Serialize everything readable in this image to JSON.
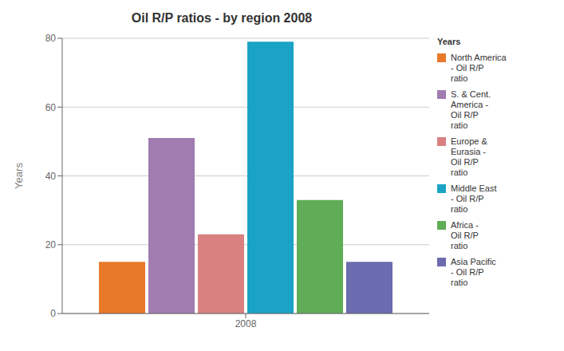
{
  "chart_data": {
    "type": "bar",
    "title": "Oil R/P ratios - by region 2008",
    "ylabel": "Years",
    "categories": [
      "2008"
    ],
    "series": [
      {
        "name": "North America\n- Oil R/P\nratio",
        "color": "#E8782A",
        "values": [
          15
        ]
      },
      {
        "name": "S. & Cent.\nAmerica -\nOil R/P\nratio",
        "color": "#A07CB0",
        "values": [
          51
        ]
      },
      {
        "name": "Europe &\nEurasia -\nOil R/P\nratio",
        "color": "#D98080",
        "values": [
          23
        ]
      },
      {
        "name": "Middle East\n- Oil R/P\nratio",
        "color": "#1BA3C6",
        "values": [
          79
        ]
      },
      {
        "name": "Africa -\nOil R/P\nratio",
        "color": "#5FAD56",
        "values": [
          33
        ]
      },
      {
        "name": "Asia Pacific\n- Oil R/P\nratio",
        "color": "#6B6BAF",
        "values": [
          15
        ]
      }
    ],
    "ylim": [
      0,
      80
    ],
    "yticks": [
      0,
      20,
      40,
      60,
      80
    ],
    "grid": true,
    "legend": "right",
    "legend_title": "Years"
  }
}
